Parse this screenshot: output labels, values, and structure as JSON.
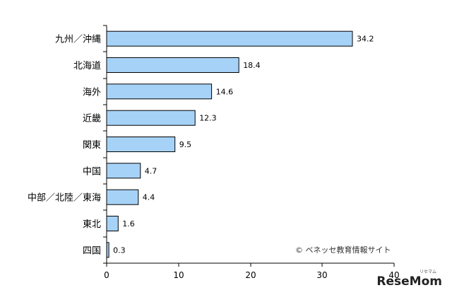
{
  "chart_data": {
    "type": "bar",
    "orientation": "horizontal",
    "categories": [
      "九州／沖縄",
      "北海道",
      "海外",
      "近畿",
      "関東",
      "中国",
      "中部／北陸／東海",
      "東北",
      "四国"
    ],
    "values": [
      34.2,
      18.4,
      14.6,
      12.3,
      9.5,
      4.7,
      4.4,
      1.6,
      0.3
    ],
    "value_labels": [
      "34.2",
      "18.4",
      "14.6",
      "12.3",
      "9.5",
      "4.7",
      "4.4",
      "1.6",
      "0.3"
    ],
    "xlim": [
      0,
      40
    ],
    "xticks": [
      0,
      10,
      20,
      30,
      40
    ],
    "xtick_labels": [
      "0",
      "10",
      "20",
      "30",
      "40"
    ],
    "grid": false,
    "bar_color": "#a6d2f7",
    "title": "",
    "xlabel": "",
    "ylabel": ""
  },
  "credit": "© ベネッセ教育情報サイト",
  "watermark": {
    "main": "ReseMom",
    "sub": "リセマム"
  }
}
